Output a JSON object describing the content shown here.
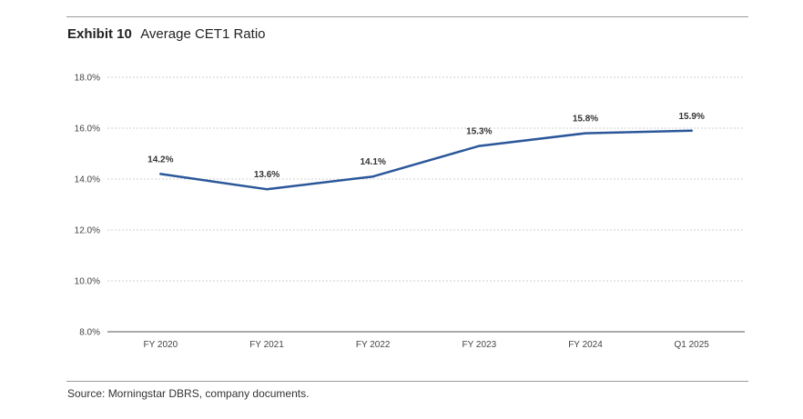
{
  "header": {
    "exhibit": "Exhibit 10",
    "title": "Average CET1 Ratio"
  },
  "footer": {
    "source": "Source: Morningstar DBRS, company documents."
  },
  "chart_data": {
    "type": "line",
    "title": "Average CET1 Ratio",
    "xlabel": "",
    "ylabel": "",
    "categories": [
      "FY 2020",
      "FY 2021",
      "FY 2022",
      "FY 2023",
      "FY 2024",
      "Q1 2025"
    ],
    "series": [
      {
        "name": "Average CET1 Ratio",
        "values": [
          14.2,
          13.6,
          14.1,
          15.3,
          15.8,
          15.9
        ],
        "labels": [
          "14.2%",
          "13.6%",
          "14.1%",
          "15.3%",
          "15.8%",
          "15.9%"
        ],
        "color": "#2b579a"
      }
    ],
    "ylim": [
      8.0,
      18.0
    ],
    "yticks": [
      8.0,
      10.0,
      12.0,
      14.0,
      16.0,
      18.0
    ],
    "ytick_labels": [
      "8.0%",
      "10.0%",
      "12.0%",
      "14.0%",
      "16.0%",
      "18.0%"
    ],
    "grid": true,
    "legend": "none"
  }
}
